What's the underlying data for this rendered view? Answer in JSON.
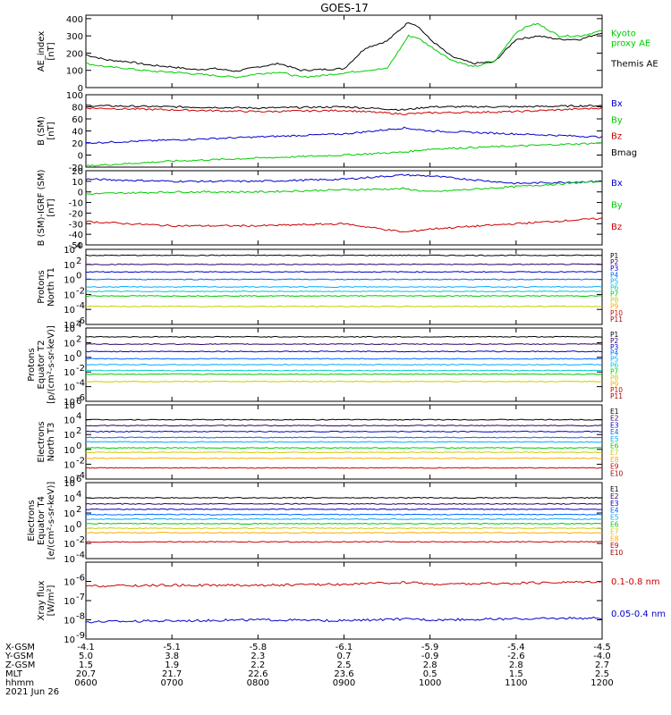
{
  "title": "GOES-17",
  "chart_data": [
    {
      "type": "line",
      "panel": "ae",
      "ylabel": "AE_index\n[nT]",
      "ylim": [
        0,
        420
      ],
      "yticks": [
        "0",
        "100",
        "200",
        "300",
        "400"
      ],
      "ytick_values": [
        0,
        100,
        200,
        300,
        400
      ],
      "log": false,
      "legend": [
        {
          "text": "Kyoto\nproxy AE",
          "color": "#00cc00"
        },
        {
          "text": "Themis AE",
          "color": "#000000"
        }
      ],
      "series": [
        {
          "name": "Themis AE",
          "color": "#000000",
          "x": [
            6.0,
            6.25,
            6.5,
            6.75,
            7.0,
            7.25,
            7.5,
            7.75,
            8.0,
            8.25,
            8.5,
            8.75,
            9.0,
            9.25,
            9.5,
            9.75,
            9.85,
            10.0,
            10.25,
            10.5,
            10.75,
            11.0,
            11.15,
            11.25,
            11.5,
            11.75,
            12.0
          ],
          "y": [
            190,
            160,
            150,
            130,
            120,
            105,
            110,
            95,
            120,
            140,
            100,
            105,
            110,
            230,
            270,
            380,
            360,
            280,
            180,
            140,
            150,
            280,
            290,
            300,
            280,
            280,
            320
          ]
        },
        {
          "name": "Kyoto proxy AE",
          "color": "#00cc00",
          "x": [
            6.0,
            6.25,
            6.5,
            6.75,
            7.0,
            7.25,
            7.5,
            7.75,
            8.0,
            8.25,
            8.5,
            8.75,
            9.0,
            9.25,
            9.5,
            9.75,
            9.85,
            10.0,
            10.25,
            10.5,
            10.75,
            11.0,
            11.15,
            11.25,
            11.5,
            11.75,
            12.0
          ],
          "y": [
            140,
            120,
            110,
            95,
            90,
            80,
            70,
            60,
            80,
            90,
            60,
            70,
            85,
            100,
            110,
            300,
            290,
            240,
            160,
            120,
            150,
            320,
            360,
            370,
            300,
            300,
            330
          ]
        }
      ]
    },
    {
      "type": "line",
      "panel": "b_sm",
      "ylabel": "B (SM)\n[nT]",
      "ylim": [
        -20,
        100
      ],
      "yticks": [
        "-20",
        "0",
        "20",
        "40",
        "60",
        "80",
        "100"
      ],
      "ytick_values": [
        -20,
        0,
        20,
        40,
        60,
        80,
        100
      ],
      "log": false,
      "legend": [
        {
          "text": "Bx",
          "color": "#0000cc"
        },
        {
          "text": "By",
          "color": "#00cc00"
        },
        {
          "text": "Bz",
          "color": "#cc0000"
        },
        {
          "text": "Bmag",
          "color": "#000000"
        }
      ],
      "series": [
        {
          "name": "Bmag",
          "color": "#000000",
          "x": [
            6,
            7,
            8,
            9,
            9.7,
            10,
            11,
            12
          ],
          "y": [
            82,
            80,
            78,
            80,
            75,
            80,
            80,
            82
          ]
        },
        {
          "name": "Bz",
          "color": "#cc0000",
          "x": [
            6,
            7,
            8,
            9,
            9.7,
            10,
            11,
            12
          ],
          "y": [
            78,
            75,
            72,
            74,
            68,
            70,
            72,
            78
          ]
        },
        {
          "name": "Bx",
          "color": "#0000cc",
          "x": [
            6,
            7,
            8,
            9,
            9.7,
            10,
            11,
            12
          ],
          "y": [
            20,
            25,
            30,
            35,
            45,
            40,
            35,
            30
          ]
        },
        {
          "name": "By",
          "color": "#00cc00",
          "x": [
            6,
            7,
            8,
            9,
            9.7,
            10,
            11,
            12
          ],
          "y": [
            -18,
            -10,
            -5,
            0,
            5,
            10,
            15,
            20
          ]
        }
      ]
    },
    {
      "type": "line",
      "panel": "b_igrf",
      "ylabel": "B (SM)-IGRF (SM)\n[nT]",
      "ylim": [
        -50,
        20
      ],
      "yticks": [
        "-50",
        "-40",
        "-30",
        "-20",
        "-10",
        "0",
        "10",
        "20"
      ],
      "ytick_values": [
        -50,
        -40,
        -30,
        -20,
        -10,
        0,
        10,
        20
      ],
      "log": false,
      "legend": [
        {
          "text": "Bx",
          "color": "#0000cc"
        },
        {
          "text": "By",
          "color": "#00cc00"
        },
        {
          "text": "Bz",
          "color": "#cc0000"
        }
      ],
      "series": [
        {
          "name": "Bx",
          "color": "#0000cc",
          "x": [
            6,
            7,
            8,
            9,
            9.7,
            10,
            11,
            12
          ],
          "y": [
            12,
            10,
            10,
            12,
            16,
            15,
            8,
            10
          ]
        },
        {
          "name": "By",
          "color": "#00cc00",
          "x": [
            6,
            7,
            8,
            9,
            9.7,
            10,
            11,
            12
          ],
          "y": [
            -2,
            0,
            0,
            2,
            3,
            0,
            5,
            10
          ]
        },
        {
          "name": "Bz",
          "color": "#cc0000",
          "x": [
            6,
            7,
            8,
            9,
            9.7,
            10,
            11,
            12
          ],
          "y": [
            -28,
            -32,
            -32,
            -30,
            -38,
            -35,
            -30,
            -25
          ]
        }
      ]
    },
    {
      "type": "line",
      "panel": "protons_t1",
      "ylabel": "Protons\nNorth T1",
      "log": true,
      "ylim_exp": [
        -6,
        4
      ],
      "yticks": [
        "10^-6",
        "10^-4",
        "10^-2",
        "10^0",
        "10^2",
        "10^4"
      ],
      "ytick_exps": [
        -6,
        -4,
        -2,
        0,
        2,
        4
      ],
      "legend": [
        {
          "text": "P1",
          "color": "#000000"
        },
        {
          "text": "P2",
          "color": "#330066"
        },
        {
          "text": "P3",
          "color": "#0000cc"
        },
        {
          "text": "P4",
          "color": "#0066ff"
        },
        {
          "text": "P5",
          "color": "#00aaff"
        },
        {
          "text": "P6",
          "color": "#00cccc"
        },
        {
          "text": "P7",
          "color": "#00cc00"
        },
        {
          "text": "P8",
          "color": "#cccc00"
        },
        {
          "text": "P9",
          "color": "#ffaa00"
        },
        {
          "text": "P10",
          "color": "#cc0000"
        },
        {
          "text": "P11",
          "color": "#990000"
        }
      ],
      "series": [
        {
          "name": "P1",
          "color": "#000000",
          "level": 3.2
        },
        {
          "name": "P2",
          "color": "#330066",
          "level": 2.0
        },
        {
          "name": "P3",
          "color": "#0000cc",
          "level": 1.0
        },
        {
          "name": "P4",
          "color": "#0066ff",
          "level": 0.0
        },
        {
          "name": "P5",
          "color": "#00aaff",
          "level": -1.0
        },
        {
          "name": "P6",
          "color": "#00cccc",
          "level": -1.6
        },
        {
          "name": "P7",
          "color": "#00cc00",
          "level": -2.2
        },
        {
          "name": "P8",
          "color": "#cccc00",
          "level": -3.6
        }
      ]
    },
    {
      "type": "line",
      "panel": "protons_t2",
      "ylabel": "Protons\nEquator T2\n[p/(cm²-s-sr-keV)]",
      "log": true,
      "ylim_exp": [
        -6,
        4
      ],
      "yticks": [
        "10^-6",
        "10^-4",
        "10^-2",
        "10^0",
        "10^2",
        "10^4"
      ],
      "ytick_exps": [
        -6,
        -4,
        -2,
        0,
        2,
        4
      ],
      "legend": [
        {
          "text": "P1",
          "color": "#000000"
        },
        {
          "text": "P2",
          "color": "#330066"
        },
        {
          "text": "P3",
          "color": "#0000cc"
        },
        {
          "text": "P4",
          "color": "#0066ff"
        },
        {
          "text": "P5",
          "color": "#00aaff"
        },
        {
          "text": "P6",
          "color": "#00cccc"
        },
        {
          "text": "P7",
          "color": "#00cc00"
        },
        {
          "text": "P8",
          "color": "#cccc00"
        },
        {
          "text": "P9",
          "color": "#ffaa00"
        },
        {
          "text": "P10",
          "color": "#cc0000"
        },
        {
          "text": "P11",
          "color": "#990000"
        }
      ],
      "series": [
        {
          "name": "P1",
          "color": "#000000",
          "level": 2.8
        },
        {
          "name": "P2",
          "color": "#330066",
          "level": 1.8
        },
        {
          "name": "P3",
          "color": "#0000cc",
          "level": 0.8
        },
        {
          "name": "P4",
          "color": "#0066ff",
          "level": -0.2
        },
        {
          "name": "P5",
          "color": "#00aaff",
          "level": -1.0
        },
        {
          "name": "P6",
          "color": "#00cccc",
          "level": -1.8
        },
        {
          "name": "P7",
          "color": "#00cc00",
          "level": -2.3
        },
        {
          "name": "P8",
          "color": "#cccc00",
          "level": -3.3
        }
      ]
    },
    {
      "type": "line",
      "panel": "electrons_t3",
      "ylabel": "Electrons\nNorth T3",
      "log": true,
      "ylim_exp": [
        -4,
        6
      ],
      "yticks": [
        "10^-4",
        "10^-2",
        "10^0",
        "10^2",
        "10^4",
        "10^6"
      ],
      "ytick_exps": [
        -4,
        -2,
        0,
        2,
        4,
        6
      ],
      "legend": [
        {
          "text": "E1",
          "color": "#000000"
        },
        {
          "text": "E2",
          "color": "#330066"
        },
        {
          "text": "E3",
          "color": "#0000cc"
        },
        {
          "text": "E4",
          "color": "#0066ff"
        },
        {
          "text": "E5",
          "color": "#00aaff"
        },
        {
          "text": "E6",
          "color": "#00cc00"
        },
        {
          "text": "E7",
          "color": "#cccc00"
        },
        {
          "text": "E8",
          "color": "#ffaa00"
        },
        {
          "text": "E9",
          "color": "#cc0000"
        },
        {
          "text": "E10",
          "color": "#990000"
        }
      ],
      "series": [
        {
          "name": "E1",
          "color": "#000000",
          "level": 4.0
        },
        {
          "name": "E2",
          "color": "#330066",
          "level": 3.2
        },
        {
          "name": "E3",
          "color": "#0000cc",
          "level": 2.4
        },
        {
          "name": "E4",
          "color": "#0066ff",
          "level": 1.6
        },
        {
          "name": "E5",
          "color": "#00aaff",
          "level": 1.0
        },
        {
          "name": "E6",
          "color": "#00cc00",
          "level": 0.2
        },
        {
          "name": "E7",
          "color": "#cccc00",
          "level": -0.4
        },
        {
          "name": "E8",
          "color": "#ffaa00",
          "level": -1.2
        },
        {
          "name": "E9",
          "color": "#cc0000",
          "level": -2.5
        }
      ]
    },
    {
      "type": "line",
      "panel": "electrons_t4",
      "ylabel": "Electrons\nEquator T4\n[e/(cm²-s-sr-keV)]",
      "log": true,
      "ylim_exp": [
        -4,
        6
      ],
      "yticks": [
        "10^-4",
        "10^-2",
        "10^0",
        "10^2",
        "10^4",
        "10^6"
      ],
      "ytick_exps": [
        -4,
        -2,
        0,
        2,
        4,
        6
      ],
      "legend": [
        {
          "text": "E1",
          "color": "#000000"
        },
        {
          "text": "E2",
          "color": "#330066"
        },
        {
          "text": "E3",
          "color": "#0000cc"
        },
        {
          "text": "E4",
          "color": "#0066ff"
        },
        {
          "text": "E5",
          "color": "#00aaff"
        },
        {
          "text": "E6",
          "color": "#00cc00"
        },
        {
          "text": "E7",
          "color": "#cccc00"
        },
        {
          "text": "E8",
          "color": "#ffaa00"
        },
        {
          "text": "E9",
          "color": "#cc0000"
        },
        {
          "text": "E10",
          "color": "#990000"
        }
      ],
      "series": [
        {
          "name": "E1",
          "color": "#000000",
          "level": 4.0
        },
        {
          "name": "E2",
          "color": "#330066",
          "level": 3.2
        },
        {
          "name": "E3",
          "color": "#0000cc",
          "level": 2.5
        },
        {
          "name": "E4",
          "color": "#0066ff",
          "level": 1.8
        },
        {
          "name": "E5",
          "color": "#00aaff",
          "level": 1.2
        },
        {
          "name": "E6",
          "color": "#00cc00",
          "level": 0.6
        },
        {
          "name": "E7",
          "color": "#cccc00",
          "level": 0.0
        },
        {
          "name": "E8",
          "color": "#ffaa00",
          "level": -0.6
        },
        {
          "name": "E9",
          "color": "#cc0000",
          "level": -1.8
        }
      ]
    },
    {
      "type": "line",
      "panel": "xray",
      "ylabel": "Xray flux\n[W/m²]",
      "log": true,
      "ylim_exp": [
        -9,
        -5
      ],
      "yticks": [
        "10^-9",
        "10^-8",
        "10^-7",
        "10^-6"
      ],
      "ytick_exps": [
        -9,
        -8,
        -7,
        -6
      ],
      "legend": [
        {
          "text": "0.1-0.8 nm",
          "color": "#cc0000"
        },
        {
          "text": "0.05-0.4 nm",
          "color": "#0000cc"
        }
      ],
      "series": [
        {
          "name": "0.1-0.8 nm",
          "color": "#cc0000",
          "x": [
            6,
            7,
            8,
            9,
            9.8,
            10,
            11,
            12
          ],
          "y_exp": [
            -6.25,
            -6.2,
            -6.2,
            -6.15,
            -6.05,
            -6.15,
            -6.1,
            -6.0
          ]
        },
        {
          "name": "0.05-0.4 nm",
          "color": "#0000cc",
          "x": [
            6,
            7,
            8,
            9,
            9.8,
            10,
            11,
            12
          ],
          "y_exp": [
            -8.1,
            -8.05,
            -8.0,
            -8.05,
            -7.95,
            -8.0,
            -7.95,
            -7.9
          ]
        }
      ]
    }
  ],
  "xaxis": {
    "ticks": [
      6,
      7,
      8,
      9,
      10,
      11,
      12
    ],
    "rows": [
      {
        "label": "X-GSM",
        "values": [
          "-4.1",
          "-5.1",
          "-5.8",
          "-6.1",
          "-5.9",
          "-5.4",
          "-4.5"
        ]
      },
      {
        "label": "Y-GSM",
        "values": [
          "5.0",
          "3.8",
          "2.3",
          "0.7",
          "-0.9",
          "-2.6",
          "-4.0"
        ]
      },
      {
        "label": "Z-GSM",
        "values": [
          "1.5",
          "1.9",
          "2.2",
          "2.5",
          "2.8",
          "2.8",
          "2.7"
        ]
      },
      {
        "label": "MLT",
        "values": [
          "20.7",
          "21.7",
          "22.6",
          "23.6",
          "0.5",
          "1.5",
          "2.5"
        ]
      },
      {
        "label": "hhmm",
        "values": [
          "0600",
          "0700",
          "0800",
          "0900",
          "1000",
          "1100",
          "1200"
        ]
      }
    ],
    "date": "2021 Jun 26"
  }
}
